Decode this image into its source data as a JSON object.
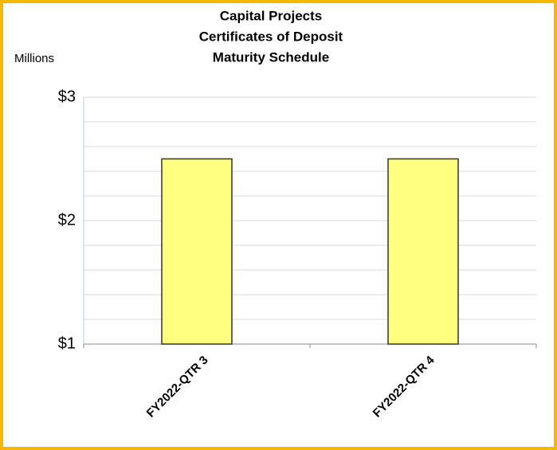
{
  "chart_data": {
    "type": "bar",
    "title": [
      "Capital Projects",
      "Certificates of Deposit",
      "Maturity Schedule"
    ],
    "y_axis_label": "Millions",
    "categories": [
      "FY2022-QTR 3",
      "FY2022-QTR 4"
    ],
    "values": [
      2.5,
      2.5
    ],
    "color": "#ffff80",
    "ylim": [
      1,
      3
    ],
    "yticks": [
      {
        "value": 1,
        "label": "$1"
      },
      {
        "value": 2,
        "label": "$2"
      },
      {
        "value": 3,
        "label": "$3"
      }
    ],
    "y_minor_ticks": [
      1.2,
      1.4,
      1.6,
      1.8,
      2.2,
      2.4,
      2.6,
      2.8
    ],
    "grid": true
  }
}
